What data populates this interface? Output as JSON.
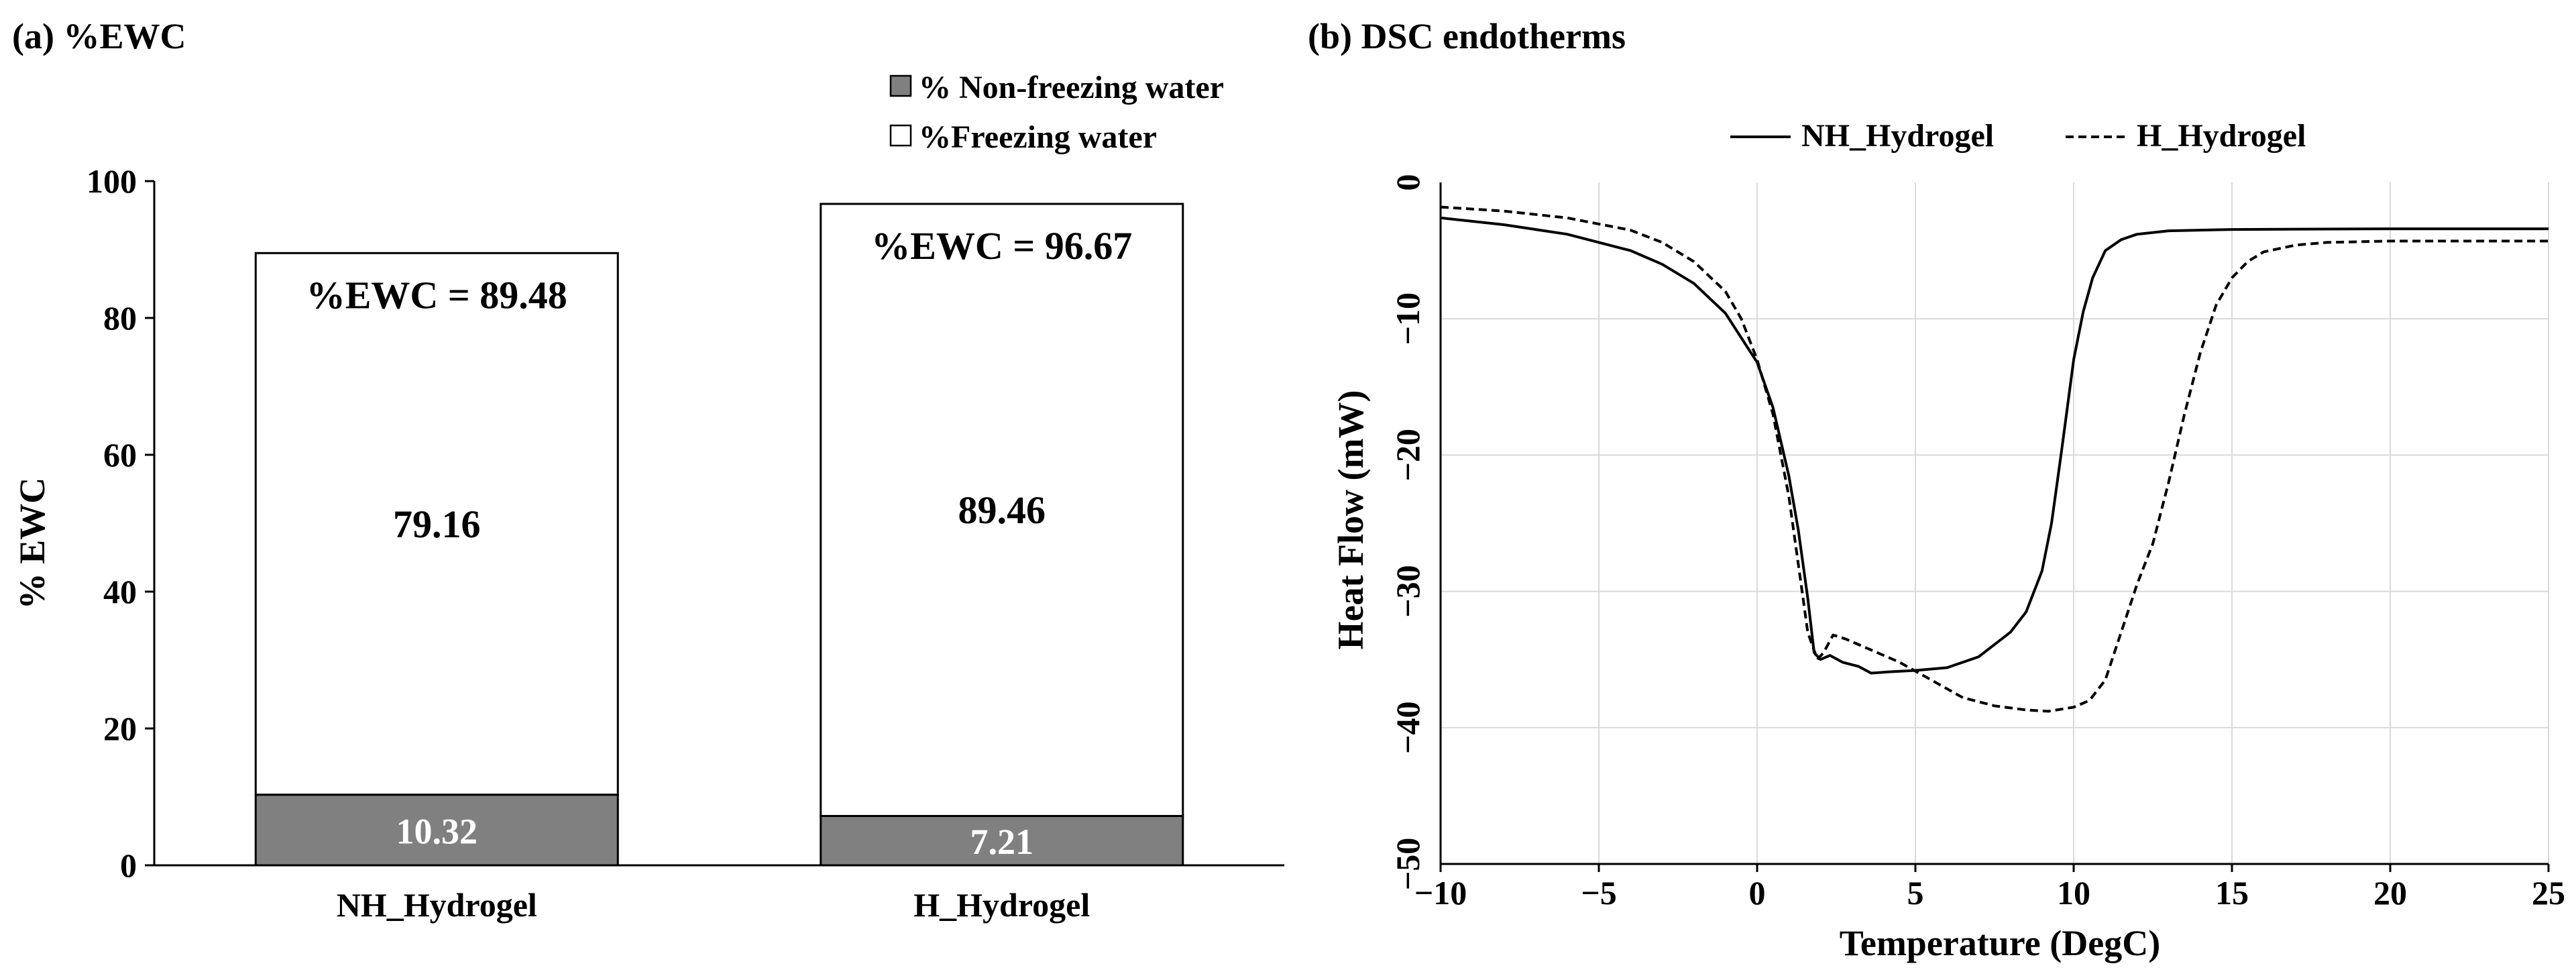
{
  "chart_data": [
    {
      "id": "a",
      "type": "bar",
      "stacked": true,
      "title": "(a) %EWC",
      "ylabel": "% EWC",
      "xlabel": "",
      "ylim": [
        0,
        100
      ],
      "ytick_labels": [
        "0",
        "20",
        "40",
        "60",
        "80",
        "100"
      ],
      "grid": false,
      "legend_position": "top-right",
      "categories": [
        "NH_Hydrogel",
        "H_Hydrogel"
      ],
      "series": [
        {
          "name": "% Non-freezing water",
          "color": "#808080",
          "values": [
            10.32,
            7.21
          ],
          "labels": [
            "10.32",
            "7.21"
          ]
        },
        {
          "name": "%Freezing water",
          "color": "#ffffff",
          "values": [
            79.16,
            89.46
          ],
          "labels": [
            "79.16",
            "89.46"
          ]
        }
      ],
      "totals": [
        89.48,
        96.67
      ],
      "annotations": [
        "%EWC = 89.48",
        "%EWC = 96.67"
      ]
    },
    {
      "id": "b",
      "type": "line",
      "title": "(b) DSC endotherms",
      "xlabel": "Temperature (DegC)",
      "ylabel": "Heat Flow (mW)",
      "xlim": [
        -10,
        25
      ],
      "ylim": [
        -50,
        0
      ],
      "xticks": [
        -10,
        -5,
        0,
        5,
        10,
        15,
        20,
        25
      ],
      "xtick_labels": [
        "−10",
        "−5",
        "0",
        "5",
        "10",
        "15",
        "20",
        "25"
      ],
      "yticks": [
        0,
        -10,
        -20,
        -30,
        -40,
        -50
      ],
      "ytick_labels": [
        "0",
        "−10",
        "−20",
        "−30",
        "−40",
        "−50"
      ],
      "grid": true,
      "legend_position": "top",
      "series": [
        {
          "name": "NH_Hydrogel",
          "style": "solid",
          "x": [
            -10,
            -8,
            -6,
            -4,
            -3,
            -2,
            -1,
            0,
            0.5,
            1,
            1.3,
            1.6,
            1.8,
            2.0,
            2.3,
            2.7,
            3.2,
            3.6,
            4.2,
            5,
            6,
            7,
            8,
            8.5,
            9,
            9.3,
            9.6,
            9.8,
            10,
            10.3,
            10.6,
            11,
            11.5,
            12,
            13,
            15,
            20,
            25
          ],
          "y": [
            -2.6,
            -3.1,
            -3.8,
            -5.0,
            -6.0,
            -7.4,
            -9.6,
            -13.2,
            -16.5,
            -21.5,
            -25.5,
            -30.5,
            -34.5,
            -35.0,
            -34.7,
            -35.2,
            -35.5,
            -36.0,
            -35.9,
            -35.8,
            -35.6,
            -34.8,
            -33.0,
            -31.5,
            -28.5,
            -25.0,
            -20.0,
            -16.5,
            -13.0,
            -9.5,
            -7.0,
            -5.0,
            -4.2,
            -3.8,
            -3.55,
            -3.45,
            -3.4,
            -3.4
          ]
        },
        {
          "name": "H_Hydrogel",
          "style": "dashed",
          "x": [
            -10,
            -8,
            -6,
            -4,
            -3,
            -2,
            -1,
            -0.5,
            0,
            0.5,
            1,
            1.3,
            1.6,
            1.9,
            2.1,
            2.4,
            2.8,
            3.5,
            4.5,
            5.5,
            6.5,
            7.5,
            8.5,
            9.2,
            10,
            10.5,
            11,
            11.5,
            12,
            12.5,
            13,
            13.5,
            14,
            14.5,
            15,
            15.5,
            16,
            17,
            18,
            20,
            22,
            25
          ],
          "y": [
            -1.8,
            -2.1,
            -2.6,
            -3.5,
            -4.4,
            -5.8,
            -8.0,
            -10.0,
            -13.0,
            -17.0,
            -23.0,
            -28.0,
            -33.0,
            -35.0,
            -34.5,
            -33.2,
            -33.5,
            -34.2,
            -35.2,
            -36.5,
            -37.8,
            -38.4,
            -38.7,
            -38.8,
            -38.5,
            -38.0,
            -36.5,
            -33.0,
            -29.5,
            -26.5,
            -22.0,
            -17.0,
            -12.5,
            -9.0,
            -7.0,
            -5.8,
            -5.1,
            -4.6,
            -4.4,
            -4.3,
            -4.3,
            -4.3
          ]
        }
      ]
    }
  ]
}
